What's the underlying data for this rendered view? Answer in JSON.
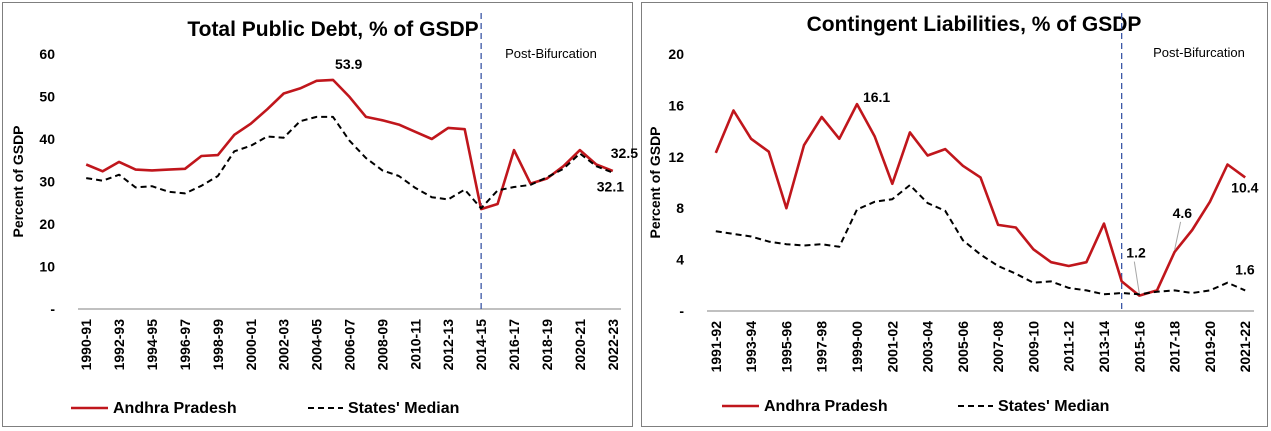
{
  "colors": {
    "ap": "#c0161c",
    "median": "#000000",
    "divider": "#3b57a5"
  },
  "legend": {
    "series_a": "Andhra Pradesh",
    "series_b": "States' Median"
  },
  "chart_data": [
    {
      "type": "line",
      "title": "Total Public Debt, % of GSDP",
      "xlabel": "",
      "ylabel": "Percent of GSDP",
      "ylim": [
        0,
        60
      ],
      "yticks": [
        0,
        10,
        20,
        30,
        40,
        50,
        60
      ],
      "ytick_labels": [
        "-",
        "10",
        "20",
        "30",
        "40",
        "50",
        "60"
      ],
      "x": [
        "1990-91",
        "1991-92",
        "1992-93",
        "1993-94",
        "1994-95",
        "1995-96",
        "1996-97",
        "1997-98",
        "1998-99",
        "1999-00",
        "2000-01",
        "2001-02",
        "2002-03",
        "2003-04",
        "2004-05",
        "2005-06",
        "2006-07",
        "2007-08",
        "2008-09",
        "2009-10",
        "2010-11",
        "2011-12",
        "2012-13",
        "2013-14",
        "2014-15",
        "2015-16",
        "2016-17",
        "2017-18",
        "2018-19",
        "2019-20",
        "2020-21",
        "2021-22",
        "2022-23"
      ],
      "xtick_labels": [
        "1990-91",
        "1992-93",
        "1994-95",
        "1996-97",
        "1998-99",
        "2000-01",
        "2002-03",
        "2004-05",
        "2006-07",
        "2008-09",
        "2010-11",
        "2012-13",
        "2014-15",
        "2016-17",
        "2018-19",
        "2020-21",
        "2022-23"
      ],
      "series": [
        {
          "name": "Andhra Pradesh",
          "values": [
            34,
            32.4,
            34.6,
            32.8,
            32.6,
            32.8,
            33,
            36,
            36.2,
            41,
            43.6,
            47,
            50.7,
            51.9,
            53.7,
            53.9,
            49.9,
            45.2,
            44.4,
            43.4,
            41.7,
            40,
            42.6,
            42.3,
            23.5,
            24.7,
            37.4,
            29.5,
            30.7,
            33.6,
            37.4,
            34,
            32.5
          ]
        },
        {
          "name": "States' Median",
          "values": [
            30.8,
            30.2,
            31.6,
            28.6,
            28.9,
            27.6,
            27.2,
            29,
            31.3,
            37.1,
            38.4,
            40.6,
            40.3,
            44.2,
            45.2,
            45.2,
            39.6,
            35.5,
            32.6,
            31.3,
            28.5,
            26.3,
            25.8,
            28.1,
            23.7,
            27.9,
            28.7,
            29.2,
            31,
            33,
            36.6,
            33.6,
            32.1
          ]
        }
      ],
      "divider_after": "2014-15",
      "period_label": "Post-Bifurcation",
      "annotations": [
        {
          "text": "53.9",
          "series": 0,
          "index": 15
        },
        {
          "text": "32.5",
          "series": 0,
          "index": 32
        },
        {
          "text": "32.1",
          "series": 1,
          "index": 32
        }
      ]
    },
    {
      "type": "line",
      "title": "Contingent Liabilities, % of GSDP",
      "xlabel": "",
      "ylabel": "Percent of GSDP",
      "ylim": [
        0,
        20
      ],
      "yticks": [
        0,
        4,
        8,
        12,
        16,
        20
      ],
      "ytick_labels": [
        "-",
        "4",
        "8",
        "12",
        "16",
        "20"
      ],
      "x": [
        "1991-92",
        "1992-93",
        "1993-94",
        "1994-95",
        "1995-96",
        "1996-97",
        "1997-98",
        "1998-99",
        "1999-00",
        "2000-01",
        "2001-02",
        "2002-03",
        "2003-04",
        "2004-05",
        "2005-06",
        "2006-07",
        "2007-08",
        "2008-09",
        "2009-10",
        "2010-11",
        "2011-12",
        "2012-13",
        "2013-14",
        "2014-15",
        "2015-16",
        "2016-17",
        "2017-18",
        "2018-19",
        "2019-20",
        "2020-21",
        "2021-22"
      ],
      "xtick_labels": [
        "1991-92",
        "1993-94",
        "1995-96",
        "1997-98",
        "1999-00",
        "2001-02",
        "2003-04",
        "2005-06",
        "2007-08",
        "2009-10",
        "2011-12",
        "2013-14",
        "2015-16",
        "2017-18",
        "2019-20",
        "2021-22"
      ],
      "series": [
        {
          "name": "Andhra Pradesh",
          "values": [
            12.3,
            15.6,
            13.4,
            12.4,
            8,
            12.9,
            15.1,
            13.4,
            16.1,
            13.6,
            9.9,
            13.9,
            12.1,
            12.6,
            11.3,
            10.4,
            6.7,
            6.5,
            4.8,
            3.8,
            3.5,
            3.8,
            6.8,
            2.3,
            1.2,
            1.6,
            4.6,
            6.3,
            8.5,
            11.4,
            10.4
          ]
        },
        {
          "name": "States' Median",
          "values": [
            6.2,
            6,
            5.8,
            5.4,
            5.2,
            5.1,
            5.2,
            5,
            7.9,
            8.5,
            8.7,
            9.8,
            8.4,
            7.8,
            5.5,
            4.4,
            3.5,
            2.9,
            2.2,
            2.3,
            1.8,
            1.6,
            1.3,
            1.4,
            1.3,
            1.5,
            1.6,
            1.4,
            1.6,
            2.2,
            1.6
          ]
        }
      ],
      "divider_after": "2014-15",
      "period_label": "Post-Bifurcation",
      "annotations": [
        {
          "text": "16.1",
          "series": 0,
          "index": 8
        },
        {
          "text": "1.2",
          "series": 0,
          "index": 24
        },
        {
          "text": "4.6",
          "series": 0,
          "index": 26
        },
        {
          "text": "10.4",
          "series": 0,
          "index": 30
        },
        {
          "text": "1.6",
          "series": 1,
          "index": 30
        }
      ]
    }
  ]
}
